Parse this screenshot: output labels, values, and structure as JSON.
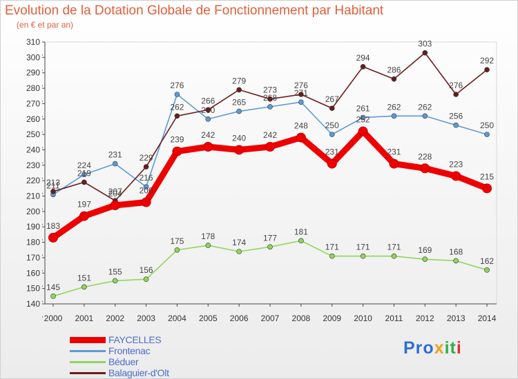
{
  "title": "Evolution de la Dotation Globale de Fonctionnement par Habitant",
  "subtitle": "(en € et par an)",
  "logo": {
    "text": [
      "Pro",
      "x",
      "it",
      "i"
    ],
    "colors": [
      "#2d6fd6",
      "#f0a020",
      "#2fb04a",
      "#e03030"
    ]
  },
  "chart_data": {
    "type": "line",
    "title": "Evolution de la Dotation Globale de Fonctionnement par Habitant",
    "subtitle": "(en € et par an)",
    "x": [
      "2000",
      "2001",
      "2002",
      "2003",
      "2004",
      "2005",
      "2006",
      "2007",
      "2008",
      "2009",
      "2010",
      "2011",
      "2012",
      "2013",
      "2014"
    ],
    "ylim": [
      140,
      310
    ],
    "yticks": [
      140,
      150,
      160,
      170,
      180,
      190,
      200,
      210,
      220,
      230,
      240,
      250,
      260,
      270,
      280,
      290,
      300,
      310
    ],
    "grid": false,
    "legend": "bottom-left",
    "series": [
      {
        "name": "FAYCELLES",
        "color": "#ee0000",
        "values": [
          183,
          197,
          204,
          206,
          239,
          242,
          240,
          242,
          248,
          231,
          252,
          231,
          228,
          223,
          215
        ]
      },
      {
        "name": "Frontenac",
        "color": "#5b9bd5",
        "values": [
          211,
          224,
          231,
          216,
          276,
          260,
          265,
          268,
          271,
          250,
          261,
          262,
          262,
          256,
          250
        ]
      },
      {
        "name": "Béduer",
        "color": "#8fd65a",
        "values": [
          145,
          151,
          155,
          156,
          175,
          178,
          174,
          177,
          181,
          171,
          171,
          171,
          169,
          168,
          162
        ]
      },
      {
        "name": "Balaguier-d'Olt",
        "color": "#6a1c1c",
        "values": [
          213,
          219,
          207,
          229,
          262,
          266,
          279,
          273,
          276,
          267,
          294,
          286,
          303,
          276,
          292
        ]
      }
    ]
  }
}
